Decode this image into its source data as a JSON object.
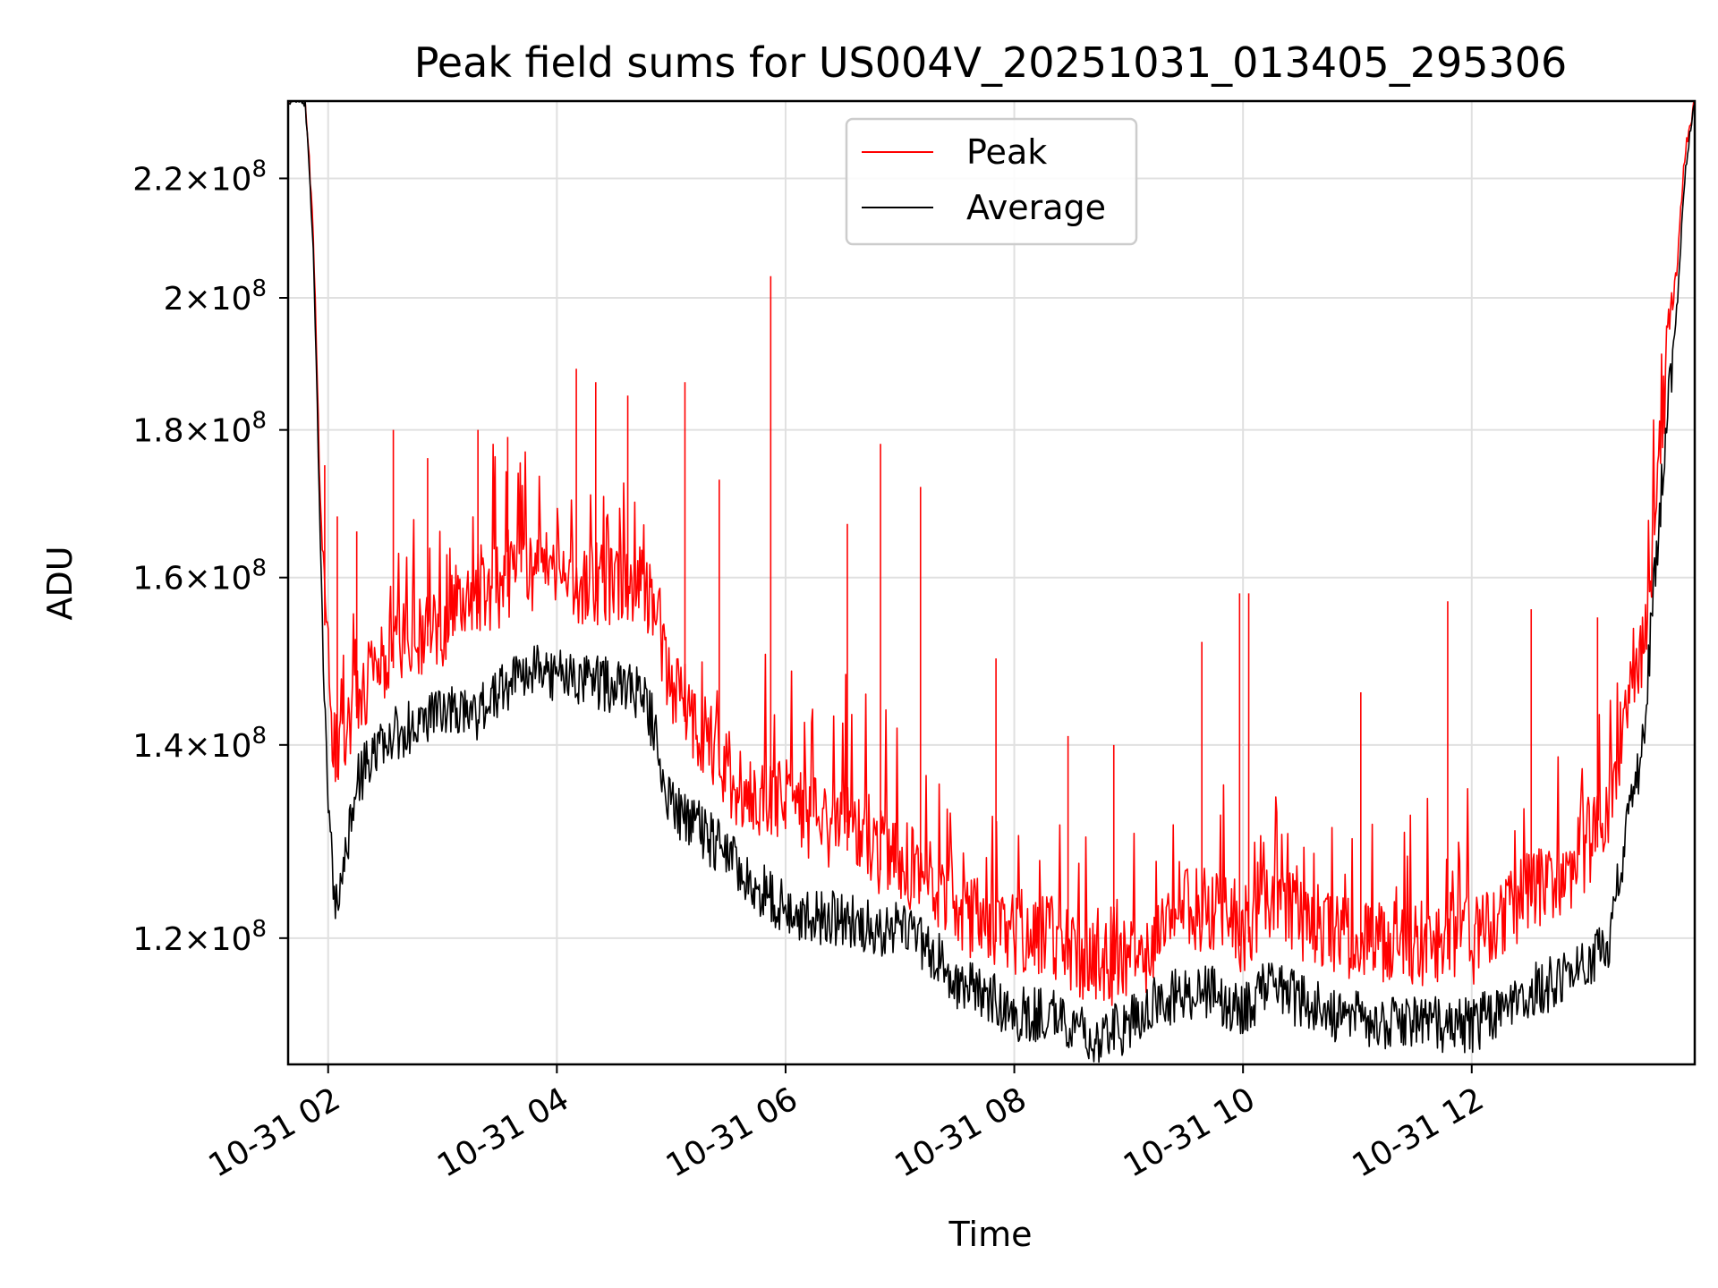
{
  "chart_data": {
    "type": "line",
    "title": "Peak field sums for US004V_20251031_013405_295306",
    "xlabel": "Time",
    "ylabel": "ADU",
    "yscale": "log",
    "grid": true,
    "legend_position": "top-center",
    "xlim": [
      1.65,
      13.95
    ],
    "ylim": [
      108500000,
      234000000
    ],
    "x_ticks": [
      {
        "value": 2,
        "label": "10-31 02"
      },
      {
        "value": 4,
        "label": "10-31 04"
      },
      {
        "value": 6,
        "label": "10-31 06"
      },
      {
        "value": 8,
        "label": "10-31 08"
      },
      {
        "value": 10,
        "label": "10-31 10"
      },
      {
        "value": 12,
        "label": "10-31 12"
      }
    ],
    "y_ticks": [
      {
        "value": 120000000,
        "mantissa": "1.2",
        "exponent": "8"
      },
      {
        "value": 140000000,
        "mantissa": "1.4",
        "exponent": "8"
      },
      {
        "value": 160000000,
        "mantissa": "1.6",
        "exponent": "8"
      },
      {
        "value": 180000000,
        "mantissa": "1.8",
        "exponent": "8"
      },
      {
        "value": 200000000,
        "mantissa": "2",
        "exponent": "8"
      },
      {
        "value": 220000000,
        "mantissa": "2.2",
        "exponent": "8"
      }
    ],
    "times_label": "×10",
    "series": [
      {
        "name": "Peak",
        "color": "#ff0000",
        "x": [
          1.65,
          1.8,
          1.87,
          1.93,
          1.98,
          2.05,
          2.1,
          2.25,
          2.5,
          2.75,
          3.0,
          3.25,
          3.5,
          3.75,
          4.0,
          4.25,
          4.5,
          4.75,
          4.85,
          4.95,
          5.25,
          5.5,
          5.75,
          6.0,
          6.25,
          6.5,
          6.75,
          7.0,
          7.25,
          7.5,
          7.75,
          8.0,
          8.25,
          8.5,
          8.75,
          9.0,
          9.25,
          9.5,
          9.75,
          10.0,
          10.25,
          10.5,
          10.75,
          11.0,
          11.25,
          11.5,
          11.75,
          12.0,
          12.25,
          12.5,
          12.75,
          13.0,
          13.2,
          13.35,
          13.5,
          13.6,
          13.7,
          13.8,
          13.87,
          13.95
        ],
        "y": [
          234000000,
          234000000,
          210000000,
          170000000,
          150000000,
          137000000,
          136000000,
          143000000,
          148000000,
          151000000,
          152000000,
          155000000,
          157000000,
          159000000,
          158000000,
          157000000,
          157000000,
          157000000,
          155000000,
          146000000,
          140000000,
          135000000,
          132000000,
          132000000,
          130000000,
          129000000,
          127000000,
          126000000,
          124000000,
          121000000,
          120000000,
          119000000,
          119000000,
          117000000,
          116000000,
          116000000,
          118000000,
          121000000,
          121000000,
          119000000,
          122000000,
          120000000,
          119000000,
          118000000,
          118000000,
          118000000,
          118000000,
          118000000,
          120000000,
          123000000,
          124000000,
          127000000,
          131000000,
          142000000,
          150000000,
          165000000,
          186000000,
          206000000,
          225000000,
          234000000
        ]
      },
      {
        "name": "Average",
        "color": "#000000",
        "x": [
          1.65,
          1.8,
          1.87,
          1.93,
          1.98,
          2.05,
          2.1,
          2.25,
          2.5,
          2.75,
          3.0,
          3.25,
          3.5,
          3.75,
          4.0,
          4.25,
          4.5,
          4.75,
          4.85,
          4.95,
          5.25,
          5.5,
          5.75,
          6.0,
          6.25,
          6.5,
          6.75,
          7.0,
          7.25,
          7.5,
          7.75,
          8.0,
          8.25,
          8.5,
          8.75,
          9.0,
          9.25,
          9.5,
          9.75,
          10.0,
          10.25,
          10.5,
          10.75,
          11.0,
          11.25,
          11.5,
          11.75,
          12.0,
          12.25,
          12.5,
          12.75,
          13.0,
          13.2,
          13.35,
          13.5,
          13.6,
          13.7,
          13.8,
          13.87,
          13.95
        ],
        "y": [
          234000000,
          234000000,
          208000000,
          165000000,
          140000000,
          124000000,
          123000000,
          136000000,
          141000000,
          142000000,
          144000000,
          143000000,
          146000000,
          149000000,
          148000000,
          147000000,
          147000000,
          146000000,
          142000000,
          134000000,
          131000000,
          128000000,
          125000000,
          123000000,
          122000000,
          122000000,
          121000000,
          121000000,
          119000000,
          116000000,
          115000000,
          113000000,
          113000000,
          112000000,
          111000000,
          112000000,
          114000000,
          115000000,
          115000000,
          113000000,
          116000000,
          114000000,
          113000000,
          113000000,
          112000000,
          112000000,
          112000000,
          112000000,
          113000000,
          115000000,
          116000000,
          117000000,
          120000000,
          130000000,
          140000000,
          160000000,
          180000000,
          200000000,
          222000000,
          234000000
        ]
      }
    ],
    "peak_spikes": [
      {
        "x": 1.97,
        "y": 175000000
      },
      {
        "x": 2.08,
        "y": 168000000
      },
      {
        "x": 2.25,
        "y": 166000000
      },
      {
        "x": 2.57,
        "y": 180000000
      },
      {
        "x": 2.87,
        "y": 176000000
      },
      {
        "x": 3.31,
        "y": 180000000
      },
      {
        "x": 3.57,
        "y": 179000000
      },
      {
        "x": 4.17,
        "y": 189000000
      },
      {
        "x": 4.34,
        "y": 187000000
      },
      {
        "x": 4.62,
        "y": 185000000
      },
      {
        "x": 5.12,
        "y": 187000000
      },
      {
        "x": 5.42,
        "y": 173000000
      },
      {
        "x": 5.87,
        "y": 203500000
      },
      {
        "x": 6.54,
        "y": 167000000
      },
      {
        "x": 6.83,
        "y": 178000000
      },
      {
        "x": 7.18,
        "y": 172000000
      },
      {
        "x": 7.84,
        "y": 150000000
      },
      {
        "x": 8.47,
        "y": 141000000
      },
      {
        "x": 8.87,
        "y": 140000000
      },
      {
        "x": 9.64,
        "y": 152000000
      },
      {
        "x": 9.97,
        "y": 158000000
      },
      {
        "x": 10.05,
        "y": 158000000
      },
      {
        "x": 11.03,
        "y": 146000000
      },
      {
        "x": 11.79,
        "y": 157000000
      },
      {
        "x": 12.52,
        "y": 156000000
      },
      {
        "x": 13.1,
        "y": 155000000
      }
    ]
  },
  "legend": {
    "items": [
      {
        "label": "Peak",
        "color": "#ff0000"
      },
      {
        "label": "Average",
        "color": "#000000"
      }
    ]
  }
}
